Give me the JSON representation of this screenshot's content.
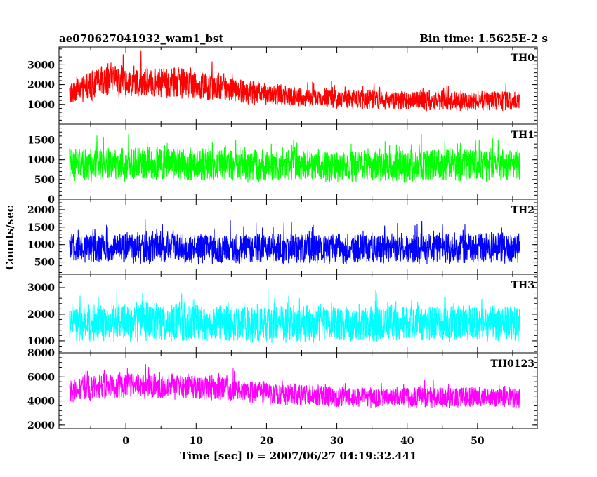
{
  "header": {
    "title": "ae070627041932_wam1_bst",
    "bin_time": "Bin time: 1.5625E-2 s"
  },
  "chart_data": {
    "type": "line",
    "title": "ae070627041932_wam1_bst",
    "xlabel": "Time [sec] 0 = 2007/06/27 04:19:32.441",
    "ylabel": "Counts/sec",
    "xlim": [
      -9.5,
      58.5
    ],
    "x_range": [
      -8,
      56
    ],
    "x_ticks": [
      0,
      10,
      20,
      30,
      40,
      50
    ],
    "panels": [
      {
        "label": "TH0",
        "color": "#ff0000",
        "ylim": [
          0,
          3900
        ],
        "yticks": [
          1000,
          2000,
          3000
        ],
        "series": {
          "x": [
            -8,
            -3,
            2,
            8,
            14,
            19,
            25,
            32,
            40,
            48,
            56
          ],
          "mean": [
            1600,
            2200,
            2150,
            2100,
            1850,
            1550,
            1350,
            1250,
            1200,
            1200,
            1200
          ],
          "amplitude": [
            600,
            900,
            850,
            850,
            750,
            650,
            550,
            550,
            550,
            550,
            550
          ]
        }
      },
      {
        "label": "TH1",
        "color": "#00ff00",
        "ylim": [
          0,
          1900
        ],
        "yticks": [
          0,
          500,
          1000,
          1500
        ],
        "series": {
          "x": [
            -8,
            5,
            20,
            35,
            56
          ],
          "mean": [
            880,
            880,
            850,
            850,
            860
          ],
          "amplitude": [
            450,
            460,
            450,
            450,
            450
          ]
        }
      },
      {
        "label": "TH2",
        "color": "#0000ff",
        "ylim": [
          150,
          2300
        ],
        "yticks": [
          500,
          1000,
          1500,
          2000
        ],
        "series": {
          "x": [
            -8,
            5,
            20,
            35,
            56
          ],
          "mean": [
            900,
            900,
            880,
            880,
            900
          ],
          "amplitude": [
            450,
            480,
            460,
            460,
            480
          ]
        }
      },
      {
        "label": "TH3",
        "color": "#00ffff",
        "ylim": [
          550,
          3500
        ],
        "yticks": [
          1000,
          2000,
          3000
        ],
        "series": {
          "x": [
            -8,
            5,
            20,
            35,
            56
          ],
          "mean": [
            1650,
            1700,
            1650,
            1650,
            1650
          ],
          "amplitude": [
            750,
            800,
            750,
            750,
            750
          ]
        }
      },
      {
        "label": "TH0123",
        "color": "#ff00ff",
        "ylim": [
          1700,
          8000
        ],
        "yticks": [
          2000,
          4000,
          6000,
          8000
        ],
        "series": {
          "x": [
            -8,
            -3,
            3,
            9,
            15,
            21,
            30,
            40,
            50,
            56
          ],
          "mean": [
            4700,
            5300,
            5200,
            5200,
            4900,
            4600,
            4350,
            4300,
            4300,
            4300
          ],
          "amplitude": [
            1000,
            1200,
            1150,
            1150,
            1050,
            1000,
            950,
            950,
            950,
            950
          ]
        }
      }
    ]
  }
}
